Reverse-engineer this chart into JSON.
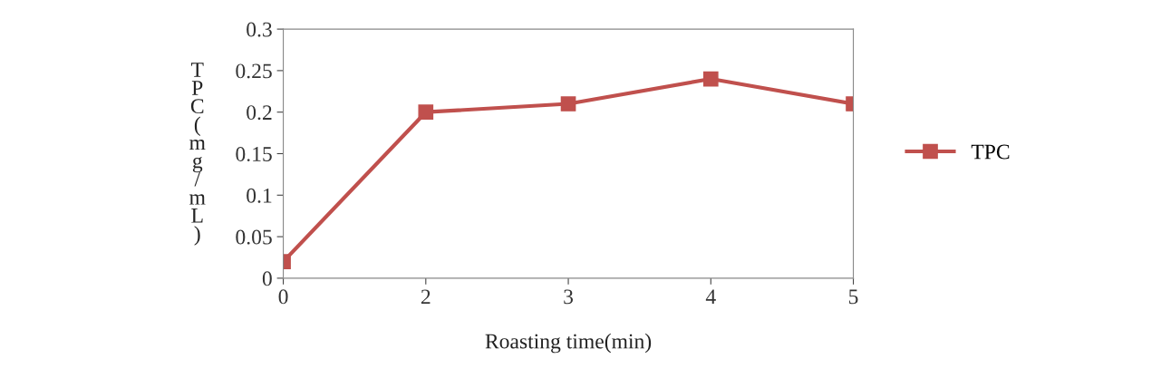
{
  "chart_data": {
    "type": "line",
    "xlabel": "Roasting time(min)",
    "ylabel": "TPC(mg/mL)",
    "categories": [
      "0",
      "2",
      "3",
      "4",
      "5"
    ],
    "series": [
      {
        "name": "TPC",
        "color": "#c0504d",
        "values": [
          0.02,
          0.2,
          0.21,
          0.24,
          0.21
        ]
      }
    ],
    "ylim": [
      0,
      0.3
    ],
    "yticks": [
      {
        "value": 0,
        "label": "0"
      },
      0.05,
      0.1,
      0.15,
      0.2,
      0.25,
      0.3
    ],
    "grid": false,
    "legend": "right",
    "marker": "square",
    "line_style": "solid"
  }
}
